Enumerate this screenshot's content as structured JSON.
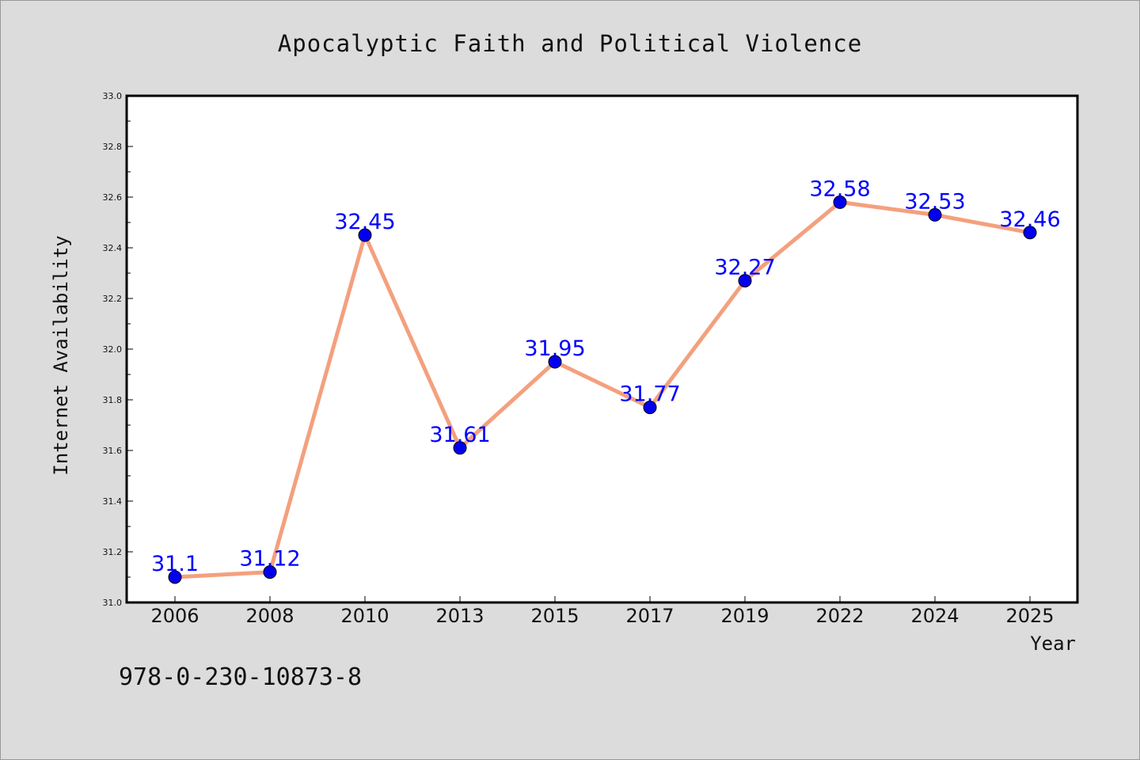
{
  "footer": {
    "isbn": "978-0-230-10873-8"
  },
  "chart_data": {
    "type": "line",
    "title": "Apocalyptic Faith and Political Violence",
    "xlabel": "Year",
    "ylabel": "Internet Availability",
    "categories": [
      "2006",
      "2008",
      "2010",
      "2013",
      "2015",
      "2017",
      "2019",
      "2022",
      "2024",
      "2025"
    ],
    "values": [
      31.1,
      31.12,
      32.45,
      31.61,
      31.95,
      31.77,
      32.27,
      32.58,
      32.53,
      32.46
    ],
    "data_labels": [
      "31.1",
      "31.12",
      "32.45",
      "31.61",
      "31.95",
      "31.77",
      "32.27",
      "32.58",
      "32.53",
      "32.46"
    ],
    "ylim": [
      31.0,
      33.0
    ],
    "y_ticks": [
      "31.0",
      "31.2",
      "31.4",
      "31.6",
      "31.8",
      "32.0",
      "32.2",
      "32.4",
      "32.6",
      "32.8",
      "33.0"
    ],
    "grid": false,
    "colors": {
      "line": "#f4a07e",
      "marker": "#0000ee",
      "label": "#0000ff",
      "background": "#dcdcdc",
      "plot_background": "#ffffff"
    }
  }
}
